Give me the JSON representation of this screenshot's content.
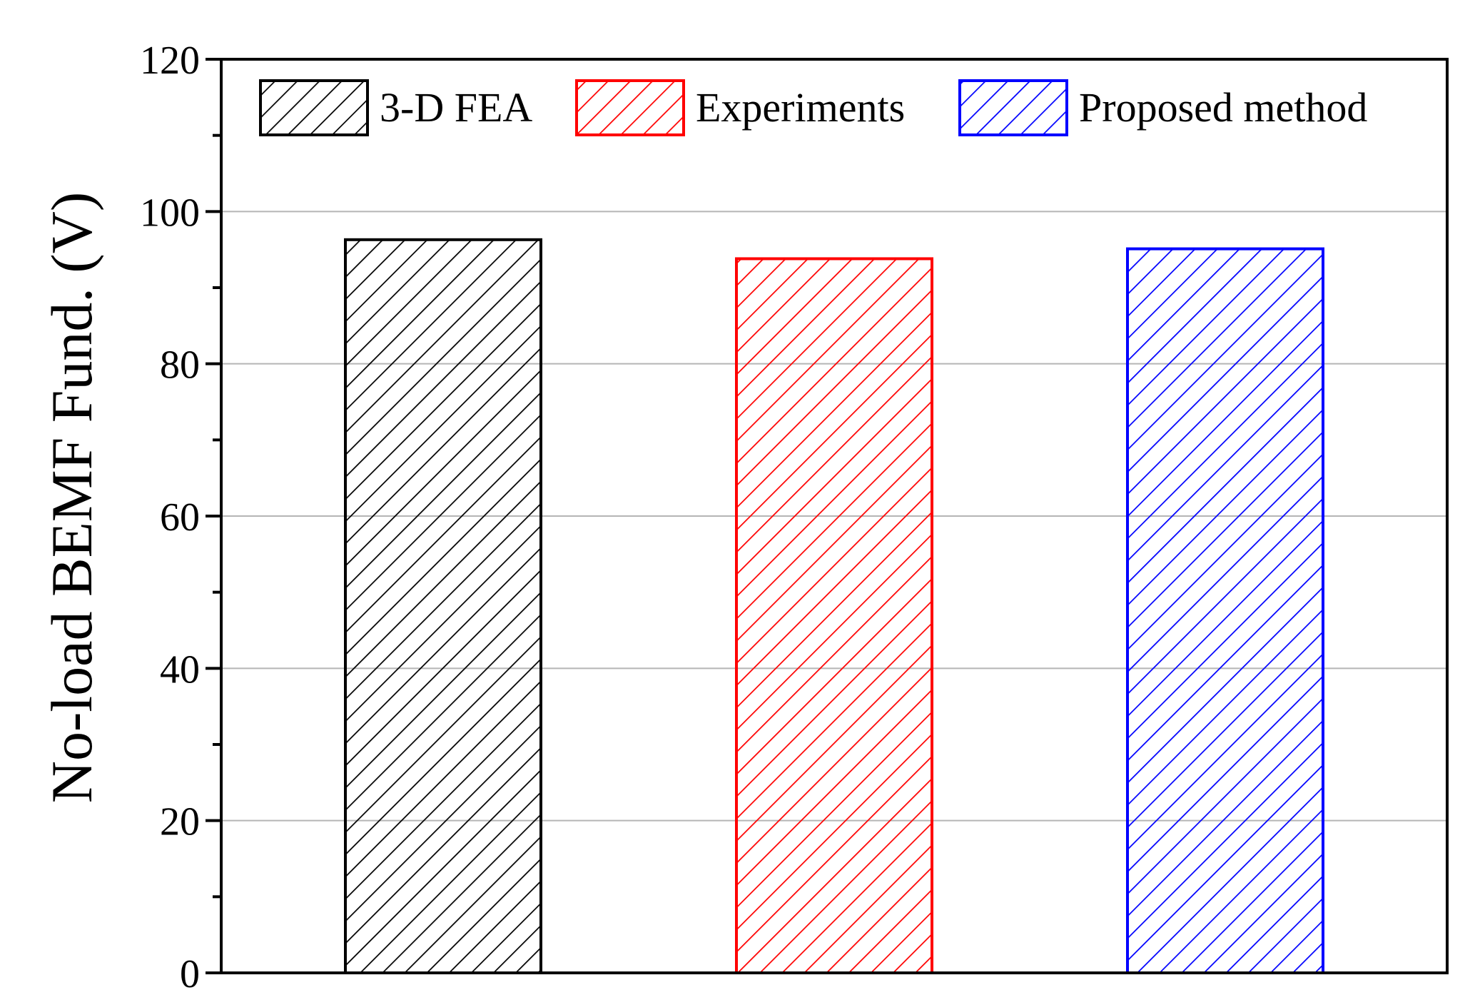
{
  "chart_data": {
    "type": "bar",
    "title": "",
    "xlabel": "",
    "ylabel": "No-load BEMF Fund. (V)",
    "ylim": [
      0,
      120
    ],
    "yticks": [
      0,
      20,
      40,
      60,
      80,
      100,
      120
    ],
    "grid": true,
    "legend_position": "top",
    "categories": [
      "3-D FEA",
      "Experiments",
      "Proposed method"
    ],
    "series": [
      {
        "name": "3-D FEA",
        "value": 96.3,
        "color": "#000000"
      },
      {
        "name": "Experiments",
        "value": 93.8,
        "color": "#ff0000"
      },
      {
        "name": "Proposed method",
        "value": 95.1,
        "color": "#0000ff"
      }
    ]
  }
}
